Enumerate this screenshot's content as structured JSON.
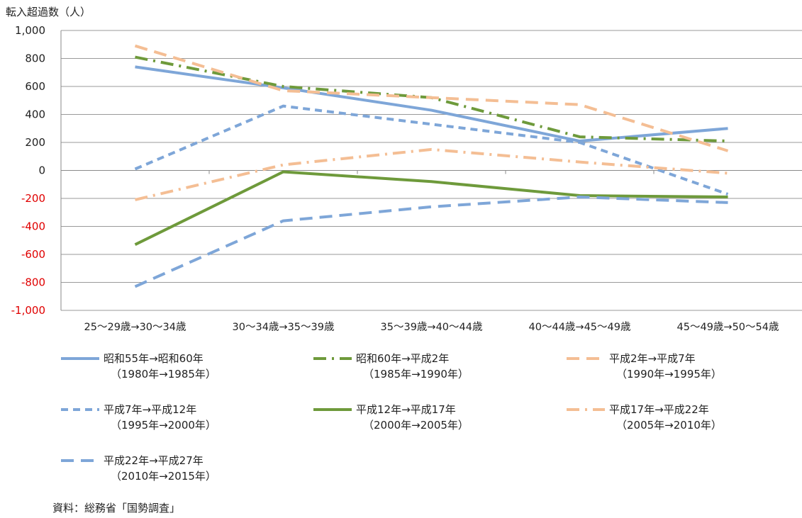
{
  "chart_data": {
    "type": "line",
    "ylabel": "転入超過数（人）",
    "ylim": [
      -1000,
      1000
    ],
    "yticks": [
      1000,
      800,
      600,
      400,
      200,
      0,
      -200,
      -400,
      -600,
      -800,
      -1000
    ],
    "ytick_labels": [
      "1,000",
      "800",
      "600",
      "400",
      "200",
      "0",
      "-200",
      "-400",
      "-600",
      "-800",
      "-1,000"
    ],
    "negative_tick_color": "#e00000",
    "categories": [
      "25～29歳→30～34歳",
      "30～34歳→35～39歳",
      "35～39歳→40～44歳",
      "40～44歳→45～49歳",
      "45～49歳→50～54歳"
    ],
    "grid": true,
    "legend_position": "bottom",
    "series": [
      {
        "name": "昭和55年→昭和60年",
        "name2": "（1980年→1985年）",
        "values": [
          740,
          590,
          430,
          210,
          300
        ],
        "color": "#7ea6d8",
        "dash": "solid"
      },
      {
        "name": "昭和60年→平成2年",
        "name2": "（1985年→1990年）",
        "values": [
          810,
          600,
          520,
          240,
          210
        ],
        "color": "#6e9a3b",
        "dash": "dashdot"
      },
      {
        "name": "平成2年→平成7年",
        "name2": "（1990年→1995年）",
        "values": [
          890,
          570,
          520,
          470,
          140
        ],
        "color": "#f4be94",
        "dash": "longdash"
      },
      {
        "name": "平成7年→平成12年",
        "name2": "（1995年→2000年）",
        "values": [
          10,
          460,
          330,
          200,
          -170
        ],
        "color": "#7ea6d8",
        "dash": "shortdash"
      },
      {
        "name": "平成12年→平成17年",
        "name2": "（2000年→2005年）",
        "values": [
          -530,
          -10,
          -80,
          -180,
          -190
        ],
        "color": "#6e9a3b",
        "dash": "solid"
      },
      {
        "name": "平成17年→平成22年",
        "name2": "（2005年→2010年）",
        "values": [
          -210,
          40,
          150,
          60,
          -20
        ],
        "color": "#f4be94",
        "dash": "dashdot"
      },
      {
        "name": "平成22年→平成27年",
        "name2": "（2010年→2015年）",
        "values": [
          -830,
          -360,
          -260,
          -190,
          -230
        ],
        "color": "#7ea6d8",
        "dash": "longdash"
      }
    ]
  },
  "source": "資料：総務省「国勢調査」"
}
